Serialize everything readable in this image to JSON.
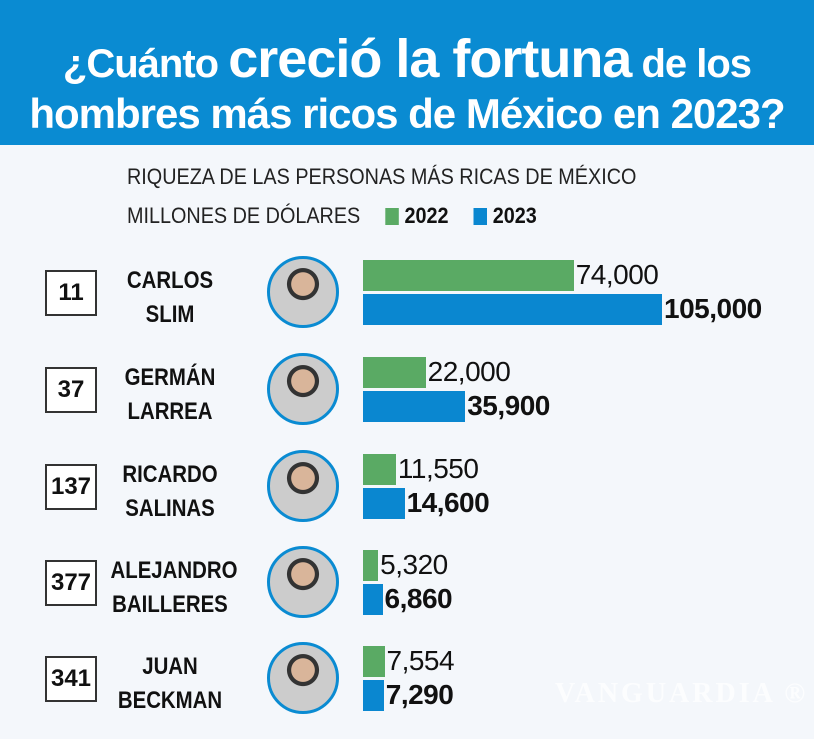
{
  "header": {
    "line1_a": "¿Cuánto",
    "line1_b": "creció la fortuna",
    "line1_c": "de los",
    "line2": "hombres más ricos de México en 2023?"
  },
  "chart_data": {
    "type": "bar",
    "title": "RIQUEZA DE LAS PERSONAS MÁS RICAS DE MÉXICO",
    "ylabel": "MILLONES DE DÓLARES",
    "orientation": "horizontal",
    "legend_position": "top",
    "grid": false,
    "categories": [
      "CARLOS SLIM",
      "GERMÁN LARREA",
      "RICARDO SALINAS",
      "ALEJANDRO BAILLERES",
      "JUAN BECKMAN"
    ],
    "name_lines": [
      [
        "CARLOS",
        "SLIM"
      ],
      [
        "GERMÁN",
        "LARREA"
      ],
      [
        "RICARDO",
        "SALINAS"
      ],
      [
        "ALEJANDRO",
        "BAILLERES"
      ],
      [
        "JUAN",
        "BECKMAN"
      ]
    ],
    "ranks": [
      "11",
      "37",
      "137",
      "377",
      "341"
    ],
    "series": [
      {
        "name": "2022",
        "color": "#5aaa64",
        "values": [
          74000,
          22000,
          11550,
          5320,
          7554
        ],
        "labels": [
          "74,000",
          "22,000",
          "11,550",
          "5,320",
          "7,554"
        ]
      },
      {
        "name": "2023",
        "color": "#0a87d0",
        "values": [
          105000,
          35900,
          14600,
          6860,
          7290
        ],
        "labels": [
          "105,000",
          "35,900",
          "14,600",
          "6,860",
          "7,290"
        ]
      }
    ],
    "xlim": [
      0,
      105000
    ]
  },
  "watermark": "VANGUARDIA"
}
